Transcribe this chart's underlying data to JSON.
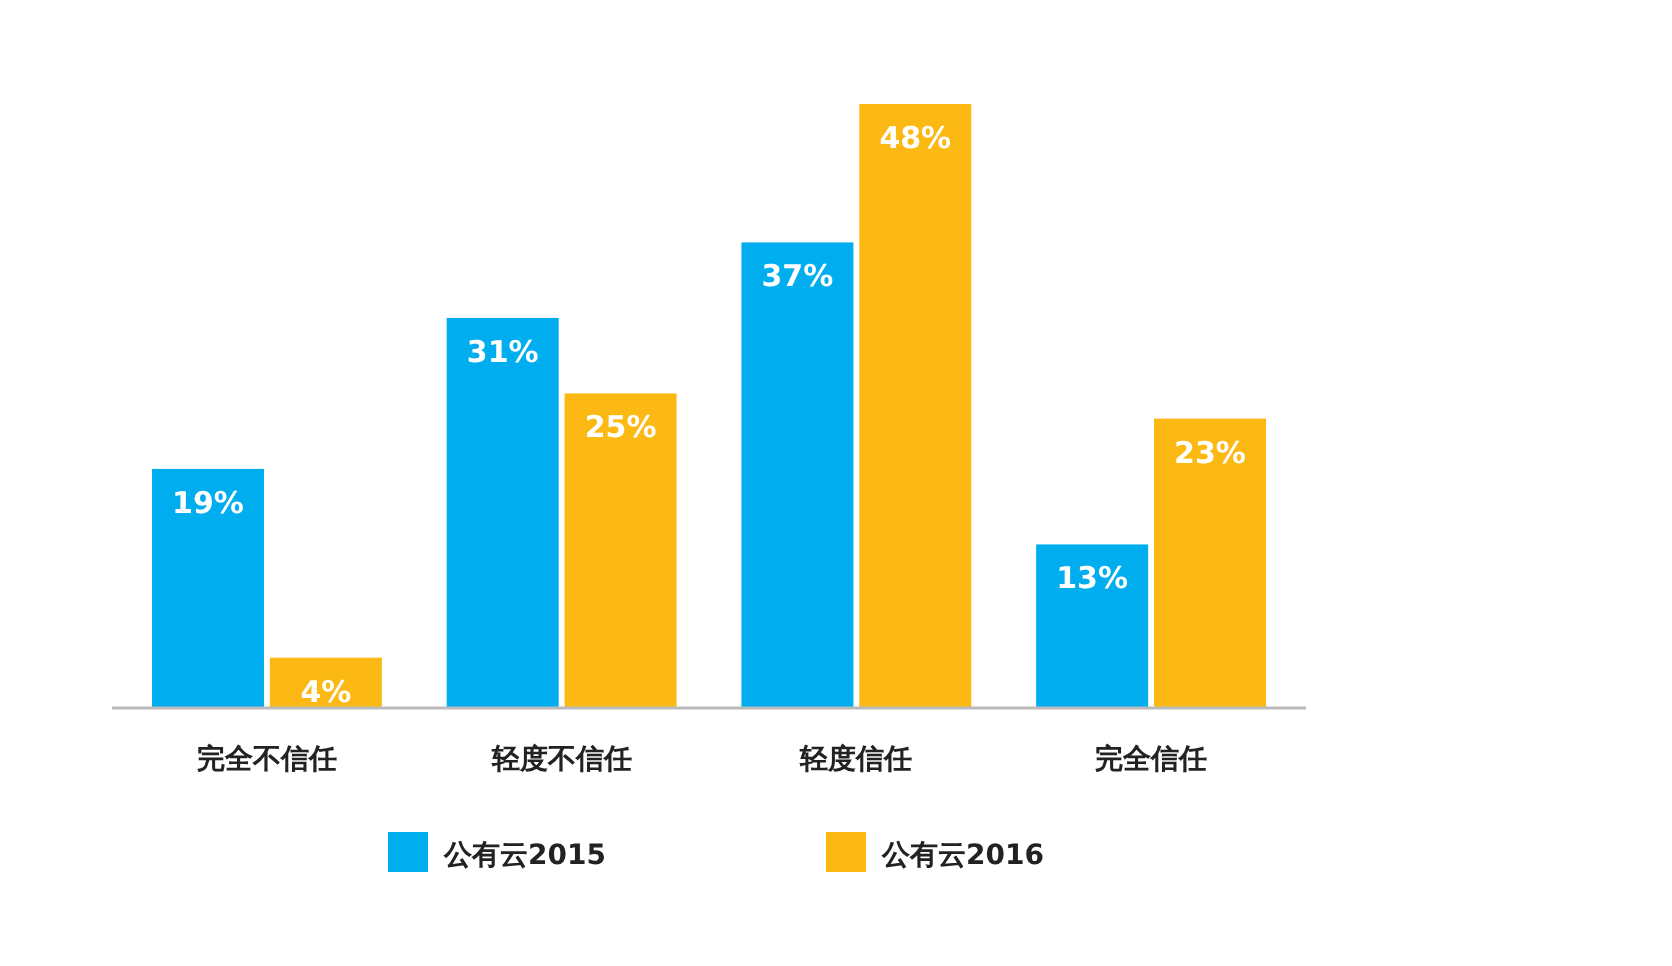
{
  "chart_data": {
    "type": "bar",
    "categories": [
      "完全不信任",
      "轻度不信任",
      "轻度信任",
      "完全信任"
    ],
    "series": [
      {
        "name": "公有云2015",
        "color": "#00aeef",
        "values": [
          19,
          31,
          37,
          13
        ],
        "value_labels": [
          "19%",
          "31%",
          "37%",
          "13%"
        ]
      },
      {
        "name": "公有云2016",
        "color": "#fdb913",
        "values": [
          4,
          25,
          48,
          23
        ],
        "value_labels": [
          "4%",
          "25%",
          "48%",
          "23%"
        ]
      }
    ],
    "legend": "bottom"
  }
}
